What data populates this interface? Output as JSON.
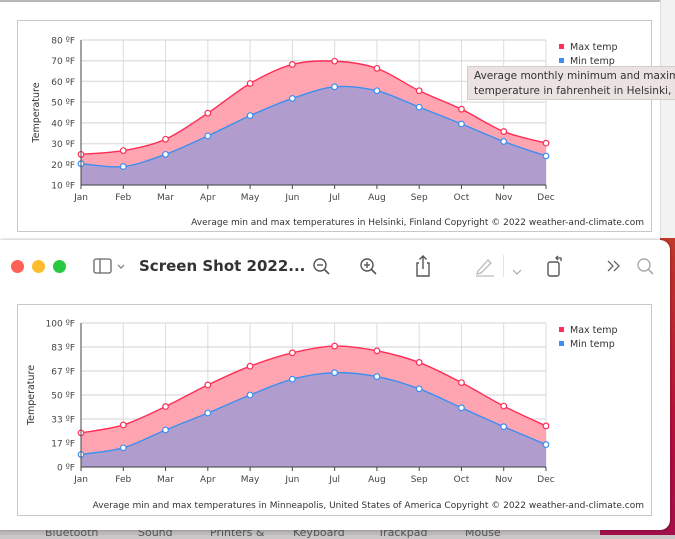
{
  "back_window": {
    "chart_data": {
      "type": "area",
      "ylabel": "Temperature",
      "ylim": [
        10,
        80
      ],
      "yticks": [
        "10 ºF",
        "20 ºF",
        "30 ºF",
        "40 ºF",
        "50 ºF",
        "60 ºF",
        "70 ºF",
        "80 ºF"
      ],
      "ytick_values": [
        10,
        20,
        30,
        40,
        50,
        60,
        70,
        80
      ],
      "categories": [
        "Jan",
        "Feb",
        "Mar",
        "Apr",
        "May",
        "Jun",
        "Jul",
        "Aug",
        "Sep",
        "Oct",
        "Nov",
        "Dec"
      ],
      "series": [
        {
          "name": "Max temp",
          "color": "#ff2d55",
          "values": [
            24.8,
            26.6,
            32.1,
            44.7,
            59,
            68.2,
            69.8,
            66.3,
            55.5,
            46.6,
            35.8,
            30.2
          ]
        },
        {
          "name": "Min temp",
          "color": "#3b8ff0",
          "values": [
            20.3,
            18.9,
            24.8,
            33.7,
            43.5,
            51.8,
            57.4,
            55.5,
            47.6,
            39.5,
            31,
            24
          ]
        }
      ],
      "grid": true,
      "legend": "top-right",
      "caption": "Average min and max temperatures in Helsinki, Finland   Copyright © 2022  weather-and-climate.com"
    },
    "tooltip": {
      "line1": "Average monthly minimum and maximum",
      "line2": "temperature in fahrenheit in Helsinki, Finland"
    }
  },
  "front_window": {
    "title": "Screen Shot 2022...",
    "toolbar": {
      "sidebar_icon": "sidebar-icon",
      "zoom_out_icon": "zoom-out-icon",
      "zoom_in_icon": "zoom-in-icon",
      "share_icon": "share-icon",
      "markup_icon": "pencil-icon",
      "rotate_icon": "rotate-icon",
      "more_icon": "chevron-double-right-icon",
      "search_icon": "search-icon"
    },
    "chart_data": {
      "type": "area",
      "ylabel": "Temperature",
      "ylim": [
        0,
        100
      ],
      "yticks": [
        "0 ºF",
        "17 ºF",
        "33 ºF",
        "50 ºF",
        "67 ºF",
        "83 ºF",
        "100 ºF"
      ],
      "ytick_values": [
        0,
        16.67,
        33.33,
        50,
        66.67,
        83.33,
        100
      ],
      "categories": [
        "Jan",
        "Feb",
        "Mar",
        "Apr",
        "May",
        "Jun",
        "Jul",
        "Aug",
        "Sep",
        "Oct",
        "Nov",
        "Dec"
      ],
      "series": [
        {
          "name": "Max temp",
          "color": "#ff2d55",
          "values": [
            23.7,
            29.2,
            42,
            57,
            70,
            79.3,
            84,
            80.7,
            72.6,
            58.6,
            42.3,
            28.5
          ]
        },
        {
          "name": "Min temp",
          "color": "#3b8ff0",
          "values": [
            8.7,
            13.3,
            25.7,
            37.5,
            50,
            61,
            65.5,
            62.8,
            54.3,
            41.1,
            28,
            15.6
          ]
        }
      ],
      "grid": true,
      "legend": "top-right",
      "caption": "Average min and max temperatures in Minneapolis, United States of America   Copyright © 2022  weather-and-climate.com"
    }
  },
  "background": {
    "labels": [
      "Bluetooth",
      "Sound",
      "Printers &",
      "Keyboard",
      "Trackpad",
      "Mouse"
    ]
  },
  "colors": {
    "max_fill": "#ffa5b2",
    "min_fill": "#ad9bd0",
    "close": "#fe5f57",
    "minimize": "#febc2e",
    "zoom": "#28c840"
  }
}
